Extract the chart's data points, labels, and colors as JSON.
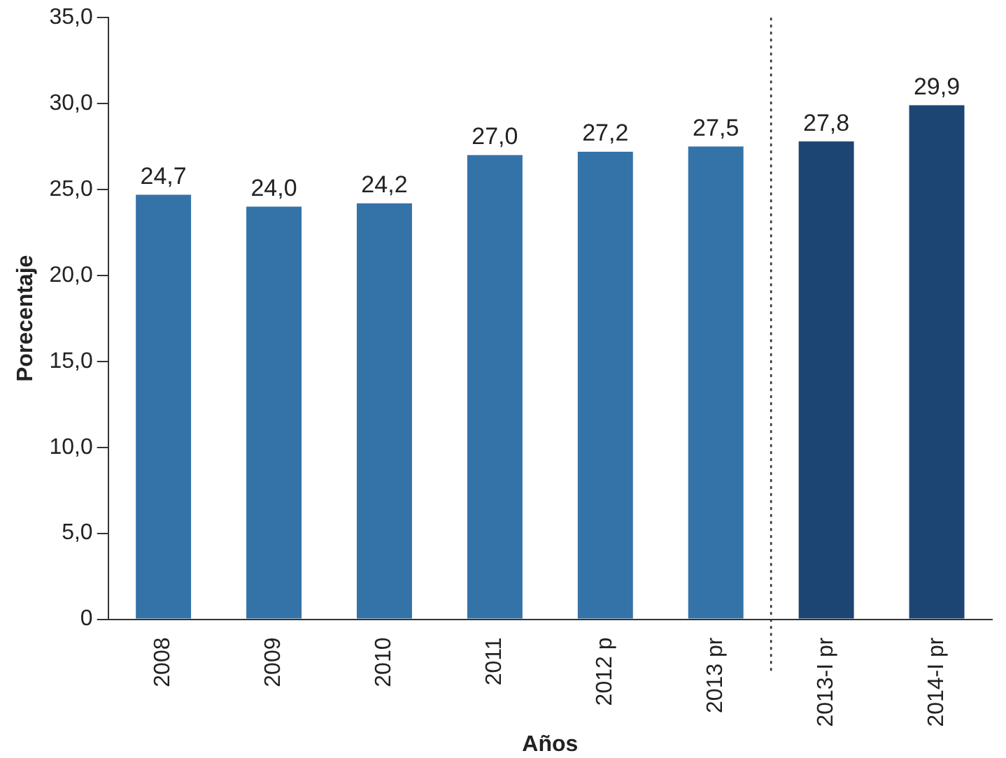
{
  "chart_data": {
    "type": "bar",
    "xlabel": "Años",
    "ylabel": "Porecentaje",
    "categories": [
      "2008",
      "2009",
      "2010",
      "2011",
      "2012 p",
      "2013 pr",
      "2013-I pr",
      "2014-I pr"
    ],
    "values": [
      24.7,
      24.0,
      24.2,
      27.0,
      27.2,
      27.5,
      27.8,
      29.9
    ],
    "colors": [
      "#3473a8",
      "#3473a8",
      "#3473a8",
      "#3473a8",
      "#3473a8",
      "#3473a8",
      "#1d4574",
      "#1d4574"
    ],
    "value_labels": [
      "24,7",
      "24,0",
      "24,2",
      "27,0",
      "27,2",
      "27,5",
      "27,8",
      "29,9"
    ],
    "ylim": [
      0,
      35
    ],
    "yticks": [
      0,
      {
        "value": 5,
        "label": "5,0"
      },
      {
        "value": 10,
        "label": "10,0"
      },
      {
        "value": 15,
        "label": "15,0"
      },
      {
        "value": 20,
        "label": "20,0"
      },
      {
        "value": 25,
        "label": "25,0"
      },
      {
        "value": 30,
        "label": "30,0"
      },
      {
        "value": 35,
        "label": "35,0"
      }
    ],
    "grid": false,
    "legend": false
  }
}
